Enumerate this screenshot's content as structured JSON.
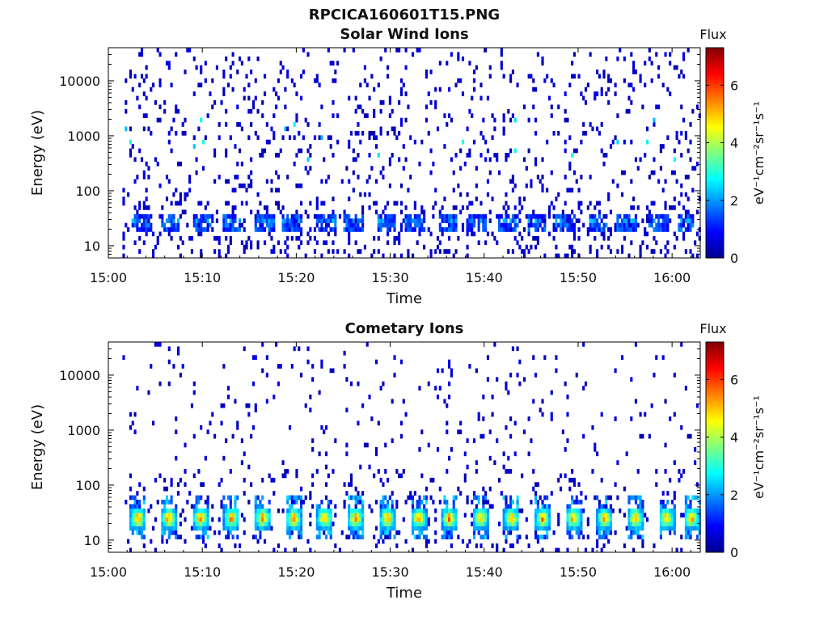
{
  "figure": {
    "title": "RPCICA160601T15.PNG"
  },
  "chart_data": [
    {
      "type": "heatmap",
      "title": "Solar Wind Ions",
      "xlabel": "Time",
      "ylabel": "Energy (eV)",
      "x_ticks": [
        "15:00",
        "15:10",
        "15:20",
        "15:30",
        "15:40",
        "15:50",
        "16:00"
      ],
      "x_tick_minutes": [
        0,
        10,
        20,
        30,
        40,
        50,
        60
      ],
      "xlim_minutes": [
        0,
        63
      ],
      "data_start_minute": 1.5,
      "y_scale": "log",
      "y_ticks": [
        "10",
        "100",
        "1000",
        "10000"
      ],
      "y_tick_values": [
        10,
        100,
        1000,
        10000
      ],
      "ylim": [
        6,
        40000
      ],
      "colorbar": {
        "title": "Flux",
        "label": "eV⁻¹cm⁻²sr⁻¹s⁻¹",
        "ticks": [
          "0",
          "2",
          "4",
          "6"
        ],
        "range": [
          0,
          7.3
        ],
        "colormap": "jet"
      },
      "pulse_centers_minutes": [
        3.5,
        6.5,
        10,
        13,
        16.5,
        19.5,
        23,
        26,
        29.5,
        32.5,
        36,
        39,
        42.5,
        45.5,
        48.5,
        52,
        55,
        58.5,
        61.5
      ],
      "bands": [
        {
          "energy_eV": 33,
          "level": 1.2
        },
        {
          "energy_eV": 27,
          "level": 1.6
        },
        {
          "energy_eV": 22,
          "level": 1.3
        }
      ],
      "background": "sparse low flux (~0.5) noise across 7 to 30000 eV"
    },
    {
      "type": "heatmap",
      "title": "Cometary Ions",
      "xlabel": "Time",
      "ylabel": "Energy (eV)",
      "x_ticks": [
        "15:00",
        "15:10",
        "15:20",
        "15:30",
        "15:40",
        "15:50",
        "16:00"
      ],
      "x_tick_minutes": [
        0,
        10,
        20,
        30,
        40,
        50,
        60
      ],
      "xlim_minutes": [
        0,
        63
      ],
      "data_start_minute": 1.5,
      "y_scale": "log",
      "y_ticks": [
        "10",
        "100",
        "1000",
        "10000"
      ],
      "y_tick_values": [
        10,
        100,
        1000,
        10000
      ],
      "ylim": [
        6,
        40000
      ],
      "colorbar": {
        "title": "Flux",
        "label": "eV⁻¹cm⁻²sr⁻¹s⁻¹",
        "ticks": [
          "0",
          "2",
          "4",
          "6"
        ],
        "range": [
          0,
          7.3
        ],
        "colormap": "jet"
      },
      "pulse_centers_minutes": [
        3,
        6.3,
        9.7,
        13,
        16.3,
        19.6,
        22.9,
        26.2,
        29.6,
        32.9,
        36.2,
        39.5,
        42.8,
        46.1,
        49.4,
        52.7,
        56,
        59.3,
        62
      ],
      "peak_energy_eV": 25,
      "peak_level": 5.6,
      "background": "sparse low flux (~0.5) noise, denser below 200 eV"
    }
  ]
}
